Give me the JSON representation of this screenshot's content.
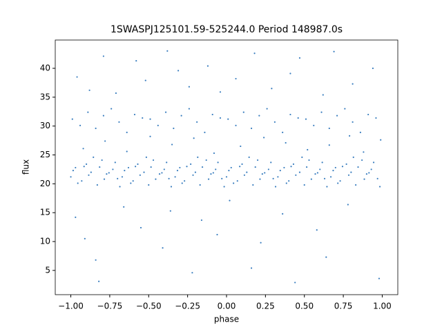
{
  "chart_data": {
    "type": "scatter",
    "title": "1SWASPJ125101.59-525244.0 Period 148987.0s",
    "xlabel": "phase",
    "ylabel": "flux",
    "xlim": [
      -1.1,
      1.1
    ],
    "ylim": [
      0.8,
      44.9
    ],
    "xticks": [
      {
        "value": -1,
        "label": "−1.00"
      },
      {
        "value": -0.75,
        "label": "−0.75"
      },
      {
        "value": -0.5,
        "label": "−0.50"
      },
      {
        "value": -0.25,
        "label": "−0.25"
      },
      {
        "value": 0,
        "label": "0.00"
      },
      {
        "value": 0.25,
        "label": "0.25"
      },
      {
        "value": 0.5,
        "label": "0.50"
      },
      {
        "value": 0.75,
        "label": "0.75"
      },
      {
        "value": 1,
        "label": "1.00"
      }
    ],
    "yticks": [
      5,
      10,
      15,
      20,
      25,
      30,
      35,
      40
    ],
    "series": [
      {
        "color": "#3a7ebf",
        "x": [
          -1.0,
          -0.97,
          -0.93,
          -0.9,
          -0.87,
          -0.83,
          -0.8,
          -0.77,
          -0.73,
          -0.7,
          -0.67,
          -0.63,
          -0.6,
          -0.57,
          -0.53,
          -0.5,
          -0.47,
          -0.43,
          -0.4,
          -0.37,
          -0.33,
          -0.3,
          -0.27,
          -0.23,
          -0.2,
          -0.17,
          -0.13,
          -0.1,
          -0.07,
          -0.03,
          0.0,
          0.03,
          0.07,
          0.1,
          0.13,
          0.17,
          0.2,
          0.23,
          0.27,
          0.3,
          0.33,
          0.37,
          0.4,
          0.43,
          0.47,
          0.5,
          0.53,
          0.57,
          0.6,
          0.63,
          0.67,
          0.7,
          0.73,
          0.77,
          0.8,
          0.83,
          0.87,
          0.9,
          0.93,
          0.97,
          -0.985,
          -0.955,
          -0.915,
          -0.885,
          -0.855,
          -0.815,
          -0.785,
          -0.755,
          -0.715,
          -0.685,
          -0.655,
          -0.615,
          -0.585,
          -0.555,
          -0.515,
          -0.485,
          -0.455,
          -0.415,
          -0.385,
          -0.355,
          -0.315,
          -0.285,
          -0.255,
          -0.215,
          -0.185,
          -0.155,
          -0.115,
          -0.085,
          -0.055,
          -0.015,
          0.015,
          0.045,
          0.085,
          0.115,
          0.145,
          0.185,
          0.215,
          0.245,
          0.285,
          0.315,
          0.345,
          0.385,
          0.415,
          0.445,
          0.485,
          0.515,
          0.545,
          0.585,
          0.615,
          0.645,
          0.685,
          0.715,
          0.745,
          0.785,
          0.815,
          0.845,
          0.885,
          0.915,
          0.945,
          0.985,
          -0.99,
          -0.94,
          -0.89,
          -0.84,
          -0.79,
          -0.74,
          -0.69,
          -0.64,
          -0.59,
          -0.54,
          -0.49,
          -0.44,
          -0.39,
          -0.34,
          -0.29,
          -0.24,
          -0.19,
          -0.14,
          -0.09,
          -0.04,
          0.01,
          0.06,
          0.11,
          0.16,
          0.21,
          0.26,
          0.31,
          0.36,
          0.41,
          0.46,
          0.51,
          0.56,
          0.61,
          0.66,
          0.71,
          0.76,
          0.81,
          0.86,
          0.91,
          0.96,
          -0.96,
          -0.88,
          -0.79,
          -0.71,
          -0.58,
          -0.52,
          -0.38,
          -0.31,
          -0.24,
          -0.12,
          -0.04,
          0.06,
          0.18,
          0.29,
          0.41,
          0.47,
          0.62,
          0.69,
          0.81,
          0.94,
          -0.97,
          -0.91,
          -0.84,
          -0.82,
          -0.66,
          -0.55,
          -0.41,
          -0.36,
          -0.22,
          -0.16,
          -0.06,
          0.02,
          0.16,
          0.22,
          0.36,
          0.44,
          0.58,
          0.64,
          0.78,
          0.98,
          -0.92,
          -0.78,
          -0.64,
          -0.49,
          -0.35,
          -0.21,
          -0.08,
          0.09,
          0.24,
          0.38,
          0.52,
          0.66,
          0.79,
          0.88,
          0.99
        ],
        "y": [
          21.2,
          22.8,
          20.5,
          23.4,
          22.0,
          19.8,
          24.1,
          21.7,
          22.5,
          20.9,
          21.2,
          22.8,
          20.5,
          23.4,
          22.0,
          19.8,
          24.1,
          21.7,
          22.5,
          20.9,
          21.2,
          22.8,
          20.5,
          23.4,
          22.0,
          19.8,
          24.1,
          21.7,
          22.5,
          20.9,
          21.2,
          22.8,
          20.5,
          23.4,
          22.0,
          19.8,
          24.1,
          21.7,
          22.5,
          20.9,
          21.2,
          22.8,
          20.5,
          23.4,
          22.0,
          19.8,
          24.1,
          21.7,
          22.5,
          20.9,
          21.2,
          22.8,
          20.5,
          23.4,
          22.0,
          19.8,
          24.1,
          21.7,
          22.5,
          20.9,
          22.3,
          20.1,
          23.0,
          21.5,
          24.6,
          22.9,
          20.8,
          21.9,
          23.7,
          19.5,
          22.3,
          20.1,
          23.0,
          21.5,
          24.6,
          22.9,
          20.8,
          21.9,
          23.7,
          19.5,
          22.3,
          20.1,
          23.0,
          21.5,
          24.6,
          22.9,
          20.8,
          21.9,
          23.7,
          19.5,
          22.3,
          20.1,
          23.0,
          21.5,
          24.6,
          22.9,
          20.8,
          21.9,
          23.7,
          19.5,
          22.3,
          20.1,
          23.0,
          21.5,
          24.6,
          22.9,
          20.8,
          21.9,
          23.7,
          19.5,
          22.3,
          20.1,
          23.0,
          21.5,
          24.6,
          22.9,
          20.8,
          21.9,
          23.7,
          19.5,
          31.2,
          30.1,
          32.4,
          29.6,
          31.8,
          33.0,
          30.7,
          28.9,
          32.0,
          31.4,
          31.2,
          30.1,
          32.4,
          29.6,
          31.8,
          33.0,
          30.7,
          28.9,
          32.0,
          31.4,
          31.2,
          30.1,
          32.4,
          29.6,
          31.8,
          33.0,
          30.7,
          28.9,
          32.0,
          31.4,
          31.2,
          30.1,
          32.4,
          29.6,
          31.8,
          33.0,
          30.7,
          28.9,
          32.0,
          31.4,
          38.5,
          36.2,
          42.1,
          35.7,
          41.3,
          37.9,
          43.0,
          39.6,
          36.8,
          40.4,
          35.9,
          38.2,
          42.6,
          36.5,
          39.1,
          41.8,
          35.4,
          42.9,
          37.3,
          40.0,
          14.2,
          10.5,
          6.8,
          3.1,
          16.0,
          12.4,
          8.9,
          15.3,
          4.6,
          13.7,
          11.2,
          17.1,
          5.4,
          9.8,
          14.8,
          2.9,
          12.0,
          7.3,
          16.4,
          3.6,
          26.1,
          27.4,
          25.6,
          28.2,
          26.8,
          27.9,
          25.3,
          26.5,
          28.0,
          27.1,
          25.9,
          26.7,
          28.3,
          25.5,
          27.6
        ]
      }
    ]
  }
}
